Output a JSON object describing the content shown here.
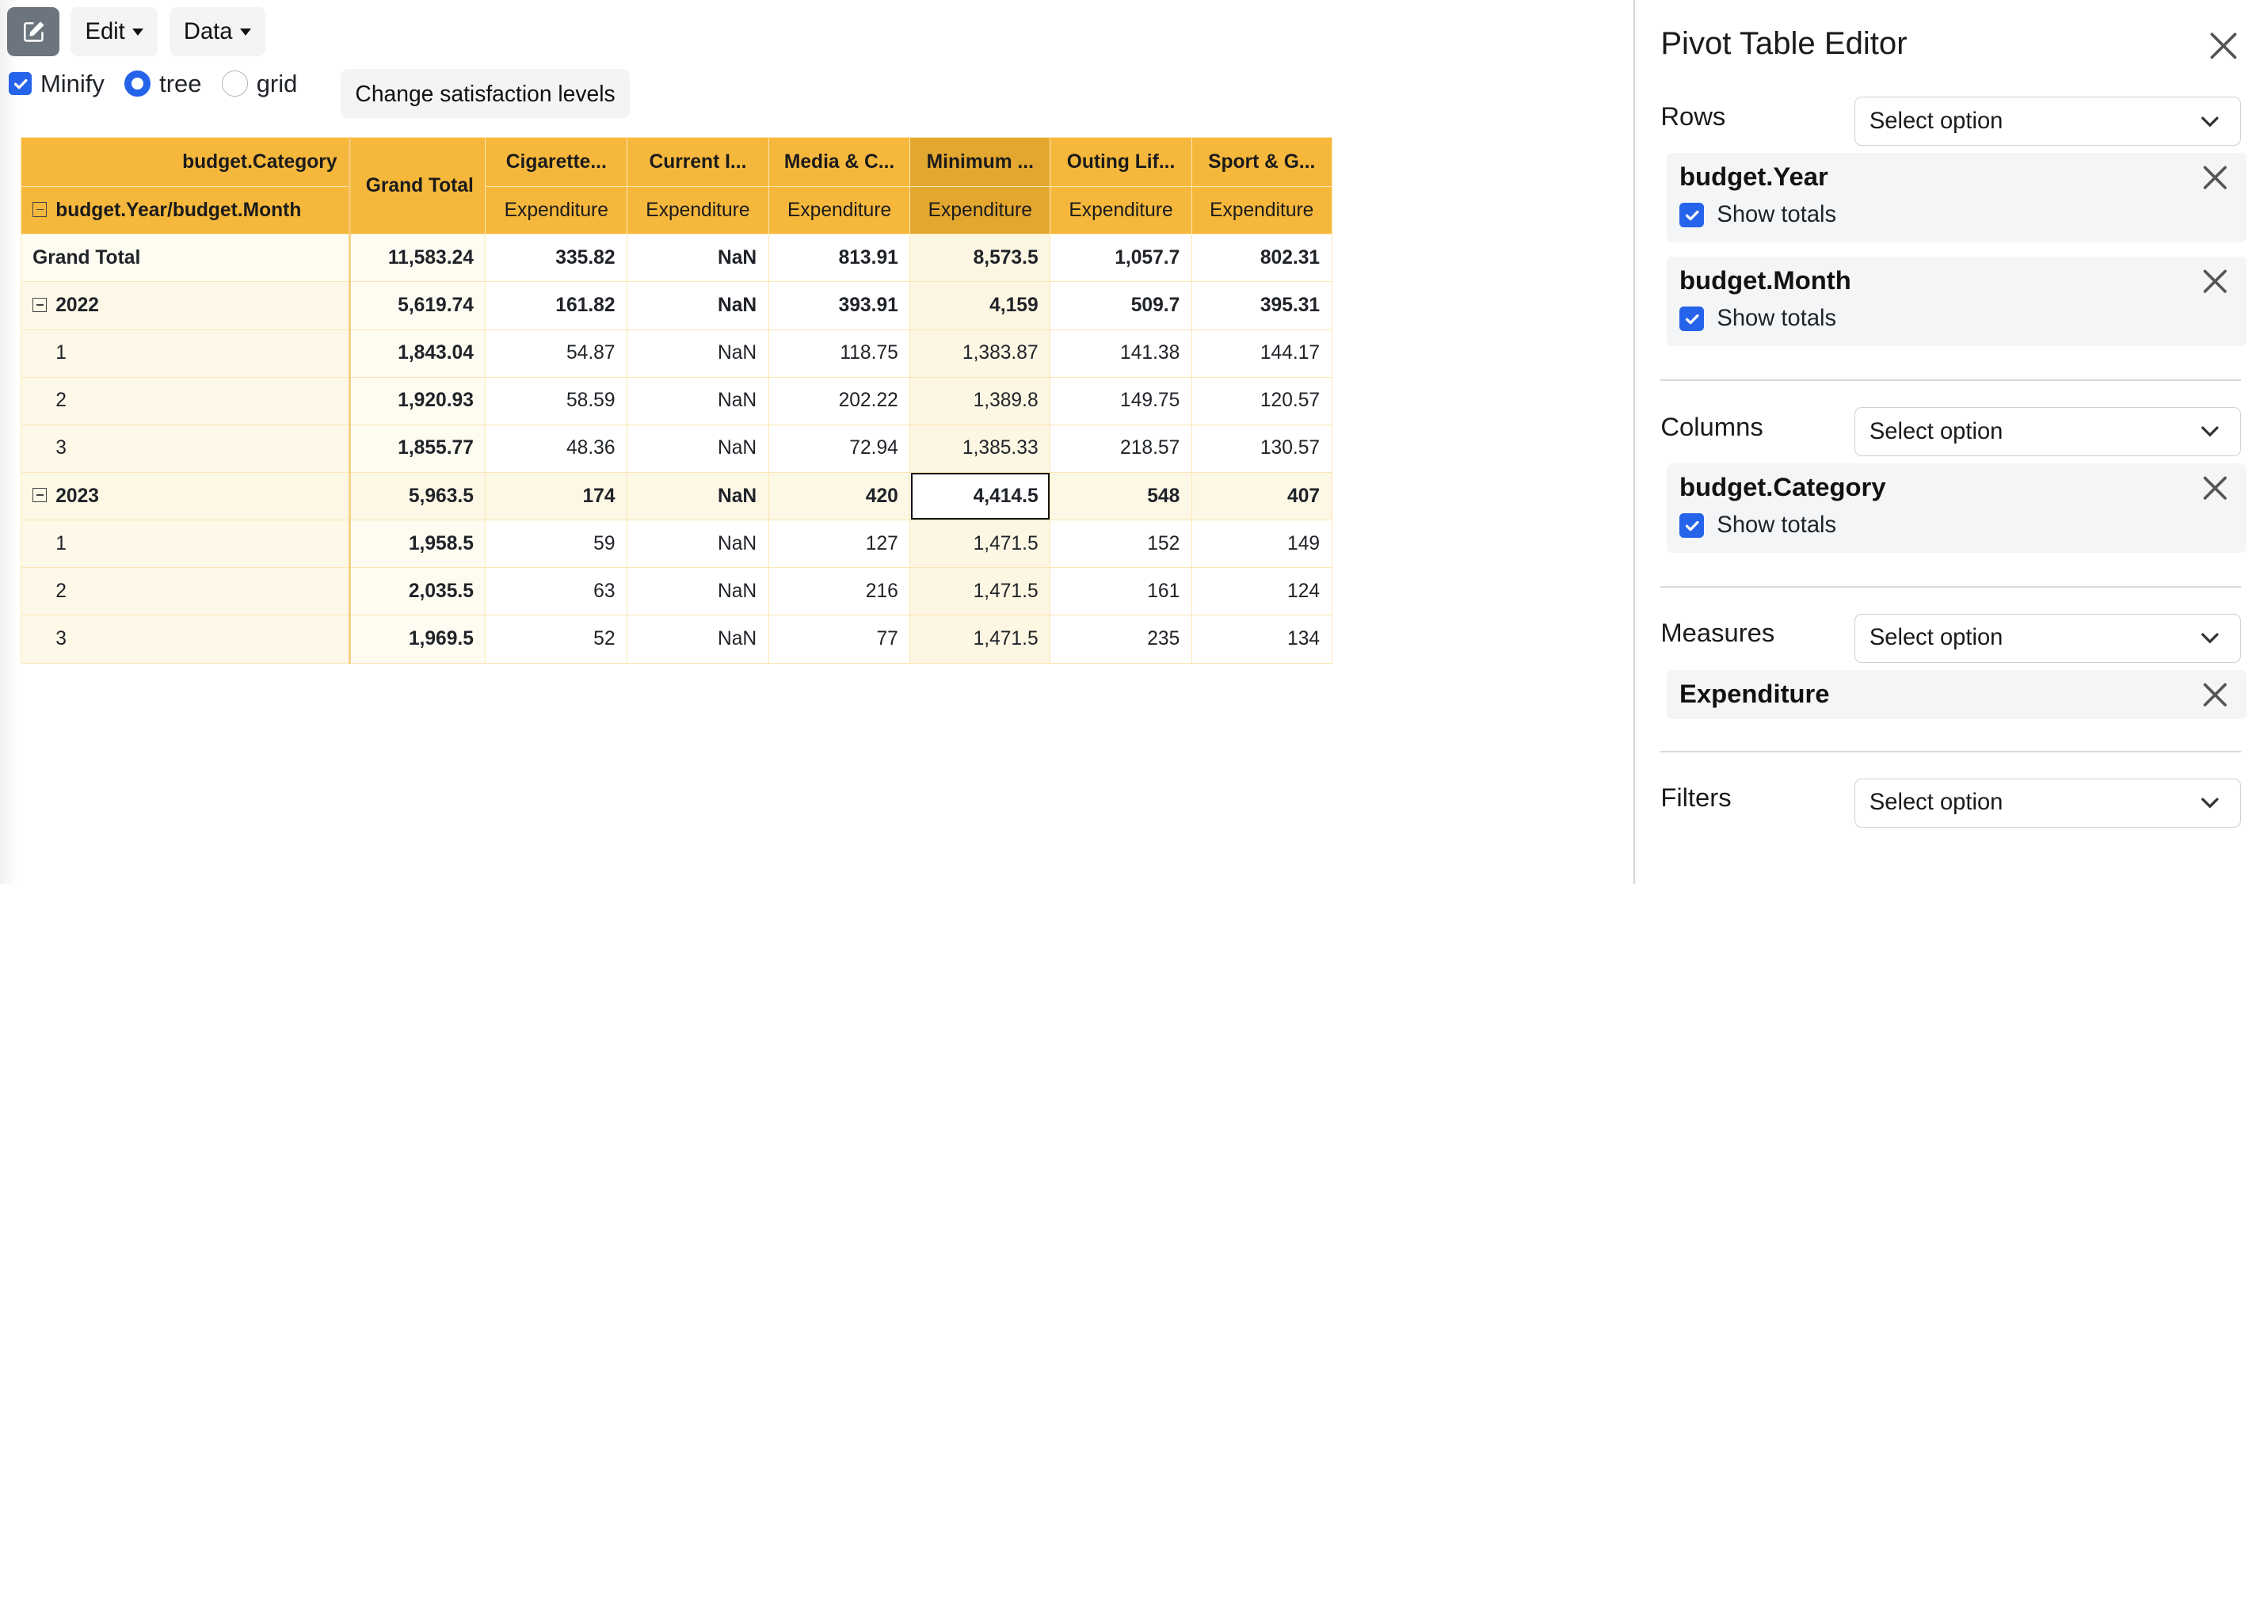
{
  "toolbar": {
    "edit_icon": "pencil-square-icon",
    "edit_label": "Edit",
    "data_label": "Data"
  },
  "options": {
    "minify_label": "Minify",
    "tree_label": "tree",
    "grid_label": "grid",
    "satisfaction_button": "Change satisfaction levels"
  },
  "pivot": {
    "column_field": "budget.Category",
    "row_field": "budget.Year/budget.Month",
    "grand_total_header": "Grand Total",
    "categories": [
      "Cigarette...",
      "Current I...",
      "Media & C...",
      "Minimum ...",
      "Outing Lif...",
      "Sport & G..."
    ],
    "measure": "Expenditure",
    "rows": [
      {
        "label": "Grand Total",
        "total": "11,583.24",
        "values": [
          "335.82",
          "NaN",
          "813.91",
          "8,573.5",
          "1,057.7",
          "802.31"
        ]
      },
      {
        "label": "2022",
        "total": "5,619.74",
        "values": [
          "161.82",
          "NaN",
          "393.91",
          "4,159",
          "509.7",
          "395.31"
        ]
      },
      {
        "label": "1",
        "total": "1,843.04",
        "values": [
          "54.87",
          "NaN",
          "118.75",
          "1,383.87",
          "141.38",
          "144.17"
        ]
      },
      {
        "label": "2",
        "total": "1,920.93",
        "values": [
          "58.59",
          "NaN",
          "202.22",
          "1,389.8",
          "149.75",
          "120.57"
        ]
      },
      {
        "label": "3",
        "total": "1,855.77",
        "values": [
          "48.36",
          "NaN",
          "72.94",
          "1,385.33",
          "218.57",
          "130.57"
        ]
      },
      {
        "label": "2023",
        "total": "5,963.5",
        "values": [
          "174",
          "NaN",
          "420",
          "4,414.5",
          "548",
          "407"
        ]
      },
      {
        "label": "1",
        "total": "1,958.5",
        "values": [
          "59",
          "NaN",
          "127",
          "1,471.5",
          "152",
          "149"
        ]
      },
      {
        "label": "2",
        "total": "2,035.5",
        "values": [
          "63",
          "NaN",
          "216",
          "1,471.5",
          "161",
          "124"
        ]
      },
      {
        "label": "3",
        "total": "1,969.5",
        "values": [
          "52",
          "NaN",
          "77",
          "1,471.5",
          "235",
          "134"
        ]
      }
    ]
  },
  "editor": {
    "title": "Pivot Table Editor",
    "select_placeholder": "Select option",
    "show_totals": "Show totals",
    "rows_label": "Rows",
    "row_fields": [
      "budget.Year",
      "budget.Month"
    ],
    "columns_label": "Columns",
    "column_fields": [
      "budget.Category"
    ],
    "measures_label": "Measures",
    "measure_fields": [
      "Expenditure"
    ],
    "filters_label": "Filters"
  },
  "colors": {
    "header": "#f6b83c",
    "header_highlight": "#e3a72f",
    "accent": "#2563eb"
  }
}
